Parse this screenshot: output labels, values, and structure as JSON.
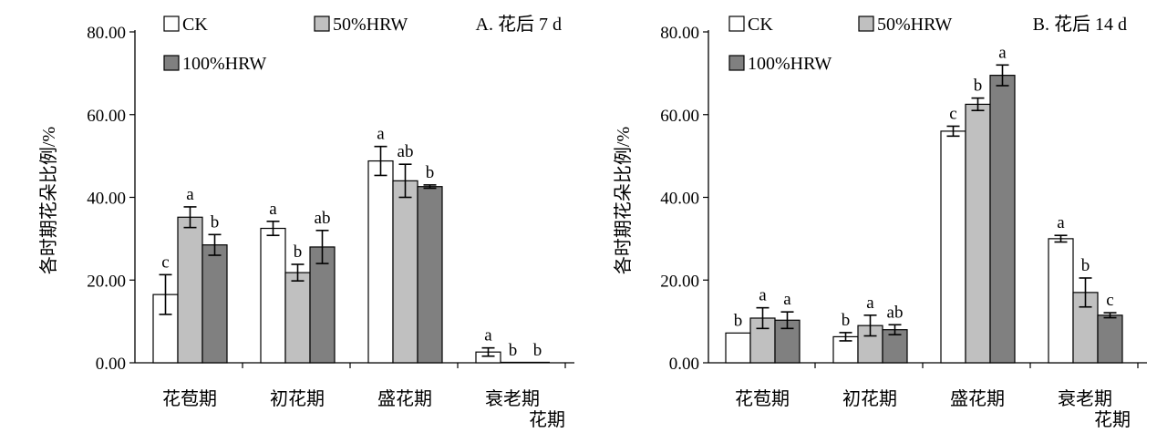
{
  "chart_data": [
    {
      "type": "bar",
      "panel_label": "A.  花后 7 d",
      "ylabel": "各时期花朵比例/%",
      "xlabel": "花期",
      "ylim": [
        0,
        80
      ],
      "yticks": [
        "0.00",
        "20.00",
        "40.00",
        "60.00",
        "80.00"
      ],
      "categories": [
        "花苞期",
        "初花期",
        "盛花期",
        "衰老期"
      ],
      "colors": [
        "#ffffff",
        "#c0c0c0",
        "#808080"
      ],
      "legend_position": "top",
      "series": [
        {
          "name": "CK",
          "values": [
            16.5,
            32.5,
            48.8,
            2.6
          ],
          "errors": [
            4.8,
            1.7,
            3.5,
            1.0
          ],
          "labels": [
            "c",
            "a",
            "a",
            "a"
          ]
        },
        {
          "name": "50%HRW",
          "values": [
            35.2,
            21.8,
            44.0,
            0
          ],
          "errors": [
            2.5,
            2.0,
            4.0,
            0
          ],
          "labels": [
            "a",
            "b",
            "ab",
            "b"
          ]
        },
        {
          "name": "100%HRW",
          "values": [
            28.5,
            28.0,
            42.6,
            0
          ],
          "errors": [
            2.5,
            4.0,
            0.4,
            0
          ],
          "labels": [
            "b",
            "ab",
            "b",
            "b"
          ]
        }
      ]
    },
    {
      "type": "bar",
      "panel_label": "B.  花后 14 d",
      "ylabel": "各时期花朵比例/%",
      "xlabel": "花期",
      "ylim": [
        0,
        80
      ],
      "yticks": [
        "0.00",
        "20.00",
        "40.00",
        "60.00",
        "80.00"
      ],
      "categories": [
        "花苞期",
        "初花期",
        "盛花期",
        "衰老期"
      ],
      "colors": [
        "#ffffff",
        "#c0c0c0",
        "#808080"
      ],
      "legend_position": "top",
      "series": [
        {
          "name": "CK",
          "values": [
            7.2,
            6.3,
            56.0,
            30.0
          ],
          "errors": [
            0,
            1.0,
            1.2,
            0.8
          ],
          "labels": [
            "b",
            "b",
            "c",
            "a"
          ]
        },
        {
          "name": "50%HRW",
          "values": [
            10.8,
            9.0,
            62.5,
            17.0
          ],
          "errors": [
            2.5,
            2.5,
            1.5,
            3.5
          ],
          "labels": [
            "a",
            "a",
            "b",
            "b"
          ]
        },
        {
          "name": "100%HRW",
          "values": [
            10.3,
            8.0,
            69.5,
            11.5
          ],
          "errors": [
            2.0,
            1.2,
            2.5,
            0.6
          ],
          "labels": [
            "a",
            "ab",
            "a",
            "c"
          ]
        }
      ]
    }
  ]
}
